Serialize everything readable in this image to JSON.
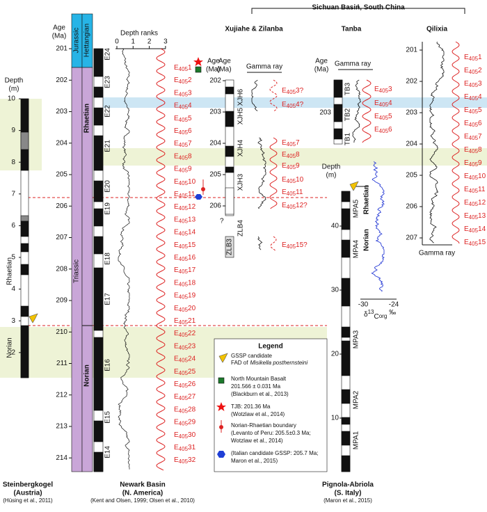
{
  "header": {
    "region": "Sichuan Basin, South China"
  },
  "steinbergkogel": {
    "depth_title": [
      "Depth",
      "(m)"
    ],
    "depth_ticks": [
      "10",
      "9",
      "8",
      "7",
      "6",
      "5",
      "4",
      "3",
      "2"
    ],
    "stages": [
      "Rhaetian",
      "Norian"
    ],
    "name": "Steinbergkogel",
    "location": "(Austria)",
    "ref": "(Hüsing et al., 2011)"
  },
  "newark": {
    "age_title": [
      "Age",
      "(Ma)"
    ],
    "ages": [
      "201",
      "202",
      "203",
      "204",
      "205",
      "206",
      "207",
      "208",
      "209",
      "210",
      "211",
      "212",
      "213",
      "214"
    ],
    "periods": [
      "Jurassic",
      "Triassic"
    ],
    "stages": [
      "Hettangian",
      "Rhaetian",
      "Norian"
    ],
    "chrons": [
      "E24",
      "E23",
      "E22",
      "E21",
      "E20",
      "E19",
      "E18",
      "E17",
      "E16",
      "E15",
      "E14"
    ],
    "ranks_title": "Depth ranks",
    "rank_ticks": [
      "0",
      "1",
      "2",
      "3"
    ],
    "cycles": [
      [
        "E",
        "405",
        "1"
      ],
      [
        "E",
        "405",
        "2"
      ],
      [
        "E",
        "405",
        "3"
      ],
      [
        "E",
        "405",
        "4"
      ],
      [
        "E",
        "405",
        "5"
      ],
      [
        "E",
        "405",
        "6"
      ],
      [
        "E",
        "405",
        "7"
      ],
      [
        "E",
        "405",
        "8"
      ],
      [
        "E",
        "405",
        "9"
      ],
      [
        "E",
        "405",
        "10"
      ],
      [
        "E",
        "405",
        "11"
      ],
      [
        "E",
        "405",
        "12"
      ],
      [
        "E",
        "405",
        "13"
      ],
      [
        "E",
        "405",
        "14"
      ],
      [
        "E",
        "405",
        "15"
      ],
      [
        "E",
        "405",
        "16"
      ],
      [
        "E",
        "405",
        "17"
      ],
      [
        "E",
        "405",
        "18"
      ],
      [
        "E",
        "405",
        "19"
      ],
      [
        "E",
        "405",
        "20"
      ],
      [
        "E",
        "405",
        "21"
      ],
      [
        "E",
        "405",
        "22"
      ],
      [
        "E",
        "405",
        "23"
      ],
      [
        "E",
        "405",
        "24"
      ],
      [
        "E",
        "405",
        "25"
      ],
      [
        "E",
        "405",
        "26"
      ],
      [
        "E",
        "405",
        "27"
      ],
      [
        "E",
        "405",
        "28"
      ],
      [
        "E",
        "405",
        "29"
      ],
      [
        "E",
        "405",
        "30"
      ],
      [
        "E",
        "405",
        "31"
      ],
      [
        "E",
        "405",
        "32"
      ]
    ],
    "name": "Newark Basin",
    "location": "(N. America)",
    "ref": "(Kent and Olsen, 1999; Olsen et al., 2010)"
  },
  "symbols": {
    "age_title": [
      "Age",
      "(Ma)"
    ]
  },
  "xujiahe": {
    "name": "Xujiahe & Zilanba",
    "age_title": [
      "Age",
      "(Ma)"
    ],
    "ages": [
      "202",
      "203",
      "204",
      "205",
      "206"
    ],
    "units": [
      "XJH6",
      "XJH5",
      "XJH4",
      "XJH3",
      "ZLB4",
      "ZLB3",
      "?"
    ],
    "gamma": "Gamma ray",
    "cycles": [
      [
        "E",
        "405",
        "3?"
      ],
      [
        "E",
        "405",
        "4?"
      ],
      [
        "E",
        "405",
        "7"
      ],
      [
        "E",
        "405",
        "8"
      ],
      [
        "E",
        "405",
        "9"
      ],
      [
        "E",
        "405",
        "10"
      ],
      [
        "E",
        "405",
        "11"
      ],
      [
        "E",
        "405",
        "12?"
      ],
      [
        "E",
        "405",
        "15?"
      ]
    ]
  },
  "tanba": {
    "name": "Tanba",
    "age_title": [
      "Age",
      "(Ma)"
    ],
    "ages": [
      "203"
    ],
    "units": [
      "TB3",
      "TB2",
      "TB1"
    ],
    "gamma": "Gamma ray",
    "cycles": [
      [
        "E",
        "405",
        "3"
      ],
      [
        "E",
        "405",
        "4"
      ],
      [
        "E",
        "405",
        "5"
      ],
      [
        "E",
        "405",
        "6"
      ]
    ]
  },
  "qilixia": {
    "name": "Qilixia",
    "ages": [
      "201",
      "202",
      "203",
      "204",
      "205",
      "206",
      "207"
    ],
    "gamma": "Gamma ray",
    "cycles": [
      [
        "E",
        "405",
        "1"
      ],
      [
        "E",
        "405",
        "2"
      ],
      [
        "E",
        "405",
        "3"
      ],
      [
        "E",
        "405",
        "4"
      ],
      [
        "E",
        "405",
        "5"
      ],
      [
        "E",
        "405",
        "6"
      ],
      [
        "E",
        "405",
        "7"
      ],
      [
        "E",
        "405",
        "8"
      ],
      [
        "E",
        "405",
        "9"
      ],
      [
        "E",
        "405",
        "10"
      ],
      [
        "E",
        "405",
        "11"
      ],
      [
        "E",
        "405",
        "12"
      ],
      [
        "E",
        "405",
        "13"
      ],
      [
        "E",
        "405",
        "14"
      ],
      [
        "E",
        "405",
        "15"
      ]
    ]
  },
  "pignola": {
    "depth_title": [
      "Depth",
      "(m)"
    ],
    "depth_ticks": [
      "40",
      "30",
      "20",
      "10"
    ],
    "units": [
      "MPA5",
      "MPA4",
      "MPA3",
      "MPA2",
      "MPA1"
    ],
    "stages": [
      "Rhaetian",
      "Norian"
    ],
    "carbon_ticks": [
      "-30",
      "-24"
    ],
    "carbon_label": [
      "δ",
      "13",
      "C",
      "org",
      "‰"
    ],
    "name": "Pignola-Abriola",
    "location": "(S. Italy)",
    "ref": "(Maron et al., 2015)"
  },
  "legend": {
    "title": "Legend",
    "items": [
      [
        "GSSP candidate",
        "FAD of",
        "Misikella posthernsteini"
      ],
      [
        "North Mountain Basalt",
        "201.566 ± 0.031 Ma",
        "(Blackburn et al., 2013)"
      ],
      [
        "TJB: 201.36 Ma",
        "(Wotzlaw et al., 2014)"
      ],
      [
        "Norian-Rhaetian boundary",
        "(Levanto of Peru: 205.5±0.3 Ma;",
        "Wotzlaw et al., 2014)"
      ],
      [
        "(Italian candidate GSSP: 205.7 Ma;",
        "Maron et al., 2015)"
      ]
    ]
  }
}
